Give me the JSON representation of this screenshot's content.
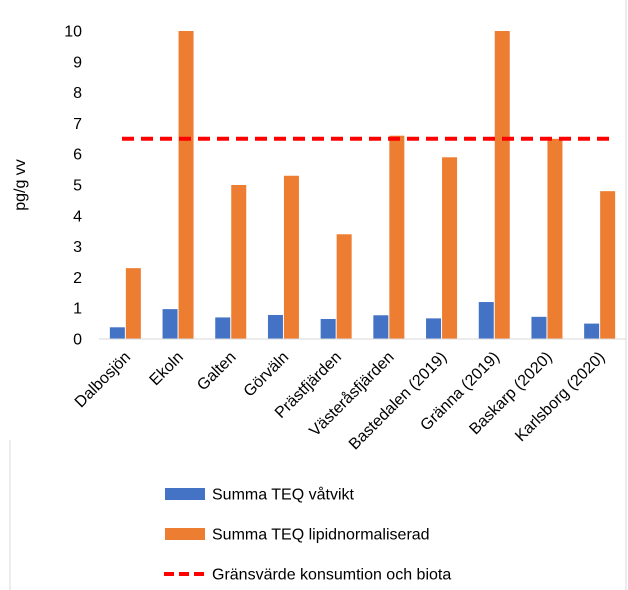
{
  "chart_data": {
    "type": "bar",
    "ylabel": "pg/g vv",
    "ylim": [
      0,
      10
    ],
    "yticks": [
      0,
      1,
      2,
      3,
      4,
      5,
      6,
      7,
      8,
      9,
      10
    ],
    "grid": false,
    "legend_position": "bottom",
    "categories": [
      "Dalbosjön",
      "Ekoln",
      "Galten",
      "Görväln",
      "Prästfjärden",
      "Västeråsfjärden",
      "Bastedalen (2019)",
      "Gränna (2019)",
      "Baskarp (2020)",
      "Karlsborg (2020)"
    ],
    "series": [
      {
        "name": "Summa TEQ våtvikt",
        "color": "#4472c4",
        "values": [
          0.38,
          0.97,
          0.7,
          0.78,
          0.65,
          0.77,
          0.67,
          1.2,
          0.72,
          0.5
        ]
      },
      {
        "name": "Summa TEQ lipidnormaliserad",
        "color": "#ed7d31",
        "values": [
          2.3,
          10,
          5.0,
          5.3,
          3.4,
          6.6,
          5.9,
          10,
          6.5,
          4.8
        ]
      }
    ],
    "reference_line": {
      "name": "Gränsvärde konsumtion och biota",
      "value": 6.5,
      "color": "#ff0000",
      "style": "dashed"
    }
  }
}
